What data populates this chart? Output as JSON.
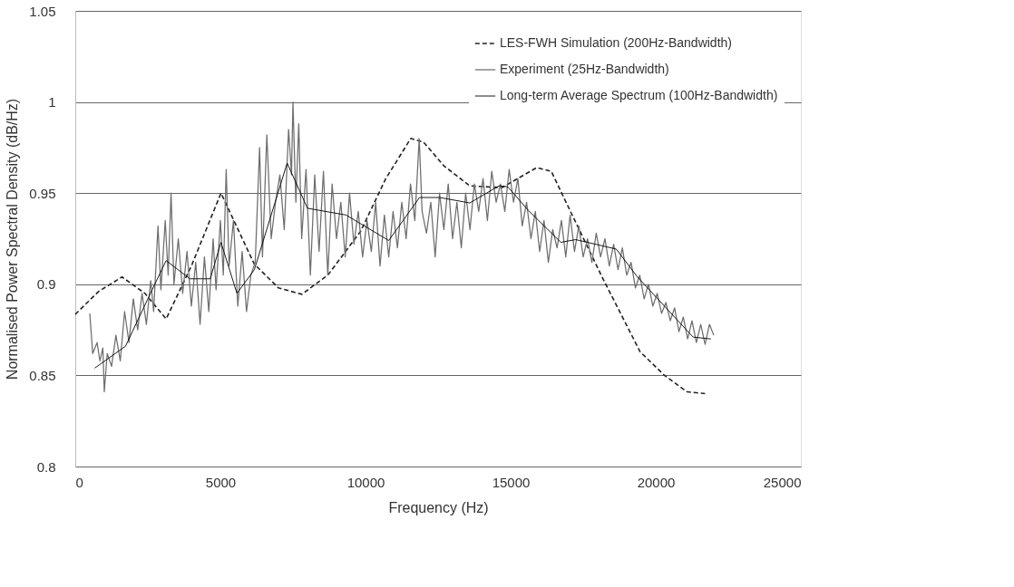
{
  "chart_data": {
    "type": "line",
    "xlabel": "Frequency (Hz)",
    "ylabel": "Normalised Power Spectral Density (dB/Hz)",
    "xlim": [
      0,
      25000
    ],
    "xticks": [
      0,
      5000,
      10000,
      15000,
      20000,
      25000
    ],
    "ylim": [
      0.8,
      1.05
    ],
    "yticks": [
      0.8,
      0.85,
      0.9,
      0.95,
      1,
      1.05
    ],
    "grid": "y",
    "legend": "top right",
    "series": [
      {
        "name": "LES-FWH Simulation (200Hz-Bandwidth)",
        "color": "#222222",
        "line_style": "dashed",
        "x": [
          0,
          800,
          1610,
          2400,
          3130,
          4000,
          5020,
          6170,
          7000,
          7810,
          8700,
          9830,
          10700,
          11560,
          12000,
          12700,
          13590,
          14700,
          15900,
          16400,
          16940,
          18150,
          19460,
          20300,
          21080,
          21700
        ],
        "values": [
          0.8835,
          0.896,
          0.904,
          0.895,
          0.881,
          0.91,
          0.95,
          0.911,
          0.898,
          0.8945,
          0.905,
          0.929,
          0.958,
          0.98,
          0.978,
          0.965,
          0.954,
          0.953,
          0.964,
          0.962,
          0.944,
          0.904,
          0.863,
          0.85,
          0.841,
          0.84
        ]
      },
      {
        "name": "Experiment (25Hz-Bandwidth)",
        "color": "#6e6e6e",
        "line_style": "solid",
        "x": [
          500,
          600,
          750,
          850,
          950,
          1000,
          1100,
          1250,
          1400,
          1550,
          1700,
          1850,
          2000,
          2150,
          2300,
          2450,
          2600,
          2700,
          2850,
          2950,
          3100,
          3200,
          3300,
          3400,
          3550,
          3700,
          3850,
          4000,
          4150,
          4300,
          4450,
          4600,
          4750,
          4850,
          5000,
          5100,
          5200,
          5300,
          5450,
          5600,
          5750,
          5900,
          6050,
          6200,
          6350,
          6450,
          6600,
          6750,
          6900,
          7050,
          7200,
          7350,
          7450,
          7500,
          7600,
          7700,
          7800,
          7950,
          8100,
          8250,
          8400,
          8550,
          8700,
          8850,
          9000,
          9150,
          9300,
          9450,
          9600,
          9750,
          9900,
          10050,
          10200,
          10350,
          10500,
          10650,
          10800,
          10950,
          11100,
          11250,
          11400,
          11550,
          11700,
          11850,
          11950,
          12100,
          12250,
          12400,
          12550,
          12700,
          12850,
          13000,
          13150,
          13300,
          13450,
          13600,
          13750,
          13900,
          14050,
          14200,
          14350,
          14500,
          14650,
          14800,
          14950,
          15100,
          15250,
          15400,
          15550,
          15700,
          15850,
          16000,
          16150,
          16300,
          16450,
          16600,
          16750,
          16900,
          17050,
          17200,
          17350,
          17500,
          17650,
          17800,
          17950,
          18100,
          18250,
          18400,
          18550,
          18700,
          18850,
          19000,
          19150,
          19300,
          19450,
          19600,
          19750,
          19900,
          20050,
          20200,
          20350,
          20500,
          20650,
          20800,
          20950,
          21100,
          21250,
          21400,
          21550,
          21700,
          21850,
          22000
        ],
        "values": [
          0.884,
          0.862,
          0.868,
          0.858,
          0.865,
          0.841,
          0.862,
          0.855,
          0.872,
          0.858,
          0.885,
          0.868,
          0.892,
          0.875,
          0.895,
          0.878,
          0.902,
          0.885,
          0.932,
          0.897,
          0.935,
          0.905,
          0.95,
          0.9,
          0.925,
          0.895,
          0.918,
          0.888,
          0.912,
          0.878,
          0.915,
          0.885,
          0.925,
          0.897,
          0.935,
          0.905,
          0.963,
          0.91,
          0.935,
          0.888,
          0.918,
          0.885,
          0.905,
          0.912,
          0.975,
          0.915,
          0.982,
          0.925,
          0.945,
          0.96,
          0.93,
          0.985,
          0.96,
          1.0,
          0.945,
          0.988,
          0.925,
          0.963,
          0.905,
          0.96,
          0.918,
          0.962,
          0.905,
          0.955,
          0.925,
          0.945,
          0.915,
          0.95,
          0.922,
          0.94,
          0.915,
          0.935,
          0.918,
          0.945,
          0.91,
          0.938,
          0.915,
          0.94,
          0.92,
          0.945,
          0.925,
          0.955,
          0.935,
          0.98,
          0.94,
          0.928,
          0.945,
          0.915,
          0.95,
          0.93,
          0.955,
          0.925,
          0.945,
          0.92,
          0.95,
          0.93,
          0.955,
          0.94,
          0.958,
          0.935,
          0.962,
          0.945,
          0.955,
          0.94,
          0.963,
          0.945,
          0.958,
          0.932,
          0.945,
          0.925,
          0.94,
          0.918,
          0.935,
          0.912,
          0.93,
          0.92,
          0.935,
          0.915,
          0.938,
          0.918,
          0.932,
          0.915,
          0.925,
          0.912,
          0.928,
          0.915,
          0.925,
          0.91,
          0.922,
          0.908,
          0.92,
          0.905,
          0.912,
          0.898,
          0.905,
          0.892,
          0.9,
          0.888,
          0.895,
          0.884,
          0.89,
          0.88,
          0.887,
          0.874,
          0.882,
          0.87,
          0.88,
          0.868,
          0.878,
          0.867,
          0.878,
          0.872
        ]
      },
      {
        "name": "Long-term Average Spectrum (100Hz-Bandwidth)",
        "color": "#000000",
        "line_style": "solid",
        "x": [
          670,
          1730,
          2500,
          3130,
          3950,
          4650,
          5020,
          5570,
          6170,
          7300,
          8000,
          9330,
          10800,
          11860,
          12560,
          13590,
          14600,
          14900,
          15600,
          16730,
          17240,
          18640,
          19370,
          20300,
          21290,
          21900
        ],
        "values": [
          0.854,
          0.866,
          0.892,
          0.913,
          0.903,
          0.903,
          0.923,
          0.895,
          0.908,
          0.9665,
          0.9417,
          0.938,
          0.924,
          0.9476,
          0.9476,
          0.9446,
          0.954,
          0.9535,
          0.9407,
          0.923,
          0.9245,
          0.9193,
          0.904,
          0.888,
          0.871,
          0.87
        ]
      }
    ]
  }
}
